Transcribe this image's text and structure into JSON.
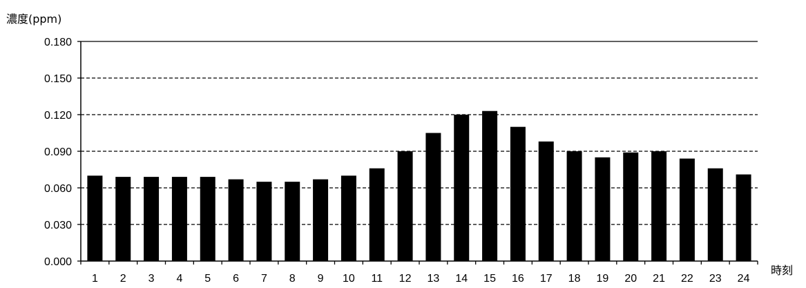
{
  "chart_data": {
    "type": "bar",
    "title": "",
    "ylabel": "濃度(ppm)",
    "xlabel": "時刻",
    "categories": [
      "1",
      "2",
      "3",
      "4",
      "5",
      "6",
      "7",
      "8",
      "9",
      "10",
      "11",
      "12",
      "13",
      "14",
      "15",
      "16",
      "17",
      "18",
      "19",
      "20",
      "21",
      "22",
      "23",
      "24"
    ],
    "values": [
      0.07,
      0.069,
      0.069,
      0.069,
      0.069,
      0.067,
      0.065,
      0.065,
      0.067,
      0.07,
      0.076,
      0.09,
      0.105,
      0.12,
      0.123,
      0.11,
      0.098,
      0.09,
      0.085,
      0.089,
      0.09,
      0.084,
      0.076,
      0.071
    ],
    "ylim": [
      0,
      0.18
    ],
    "yticks": [
      "0.000",
      "0.030",
      "0.060",
      "0.090",
      "0.120",
      "0.150",
      "0.180"
    ],
    "grid": true,
    "grid_style": "dashed",
    "bar_color": "#000000"
  }
}
